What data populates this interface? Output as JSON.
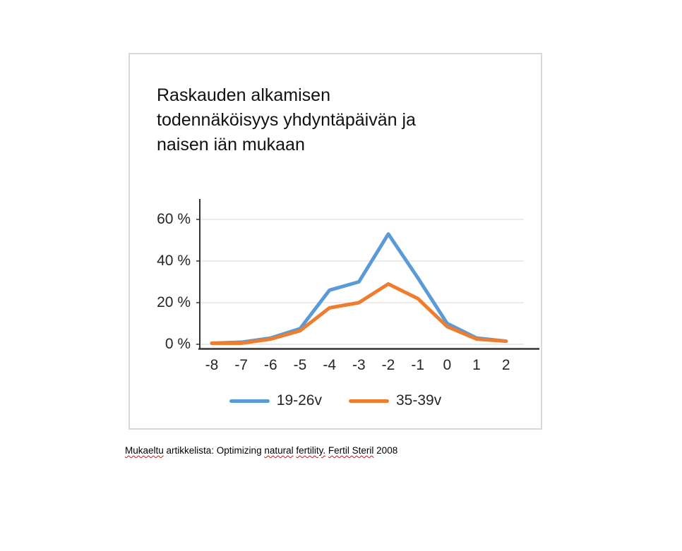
{
  "chart": {
    "title": "Raskauden alkamisen\ntodennäköisyys yhdyntäpäivän ja\nnaisen iän mukaan"
  },
  "chart_data": {
    "type": "line",
    "title": "Raskauden alkamisen todennäköisyys yhdyntäpäivän ja naisen iän mukaan",
    "xlabel": "",
    "ylabel": "",
    "categories": [
      "-8",
      "-7",
      "-6",
      "-5",
      "-4",
      "-3",
      "-2",
      "-1",
      "0",
      "1",
      "2"
    ],
    "series": [
      {
        "name": "19-26v",
        "color": "#5B9BD5",
        "values": [
          0.5,
          1,
          3,
          7.5,
          26,
          30,
          53,
          32,
          10,
          3,
          1.5
        ]
      },
      {
        "name": "35-39v",
        "color": "#ED7D31",
        "values": [
          0.5,
          0.5,
          2.5,
          6.5,
          17.5,
          20,
          29,
          22,
          8.5,
          2.5,
          1.5
        ]
      }
    ],
    "ylim": [
      0,
      65
    ],
    "yticks": [
      {
        "value": 0,
        "label": "0 %"
      },
      {
        "value": 20,
        "label": "20 %"
      },
      {
        "value": 40,
        "label": "40 %"
      },
      {
        "value": 60,
        "label": "60 %"
      }
    ],
    "grid": true,
    "legend_position": "bottom"
  },
  "styles": {
    "gridline_color": "#d9d9d9",
    "axis_color": "#333333",
    "frame_border_color": "#d8d8d8",
    "line_width": 5
  },
  "footer": {
    "segments": [
      {
        "text": "Mukaeltu",
        "underline": true
      },
      {
        "text": " artikkelista: Optimizing ",
        "underline": false
      },
      {
        "text": "natural",
        "underline": true
      },
      {
        "text": " ",
        "underline": false
      },
      {
        "text": "fertility.",
        "underline": true
      },
      {
        "text": " ",
        "underline": false
      },
      {
        "text": "Fertil Steril",
        "underline": true
      },
      {
        "text": " 2008",
        "underline": false
      }
    ]
  }
}
